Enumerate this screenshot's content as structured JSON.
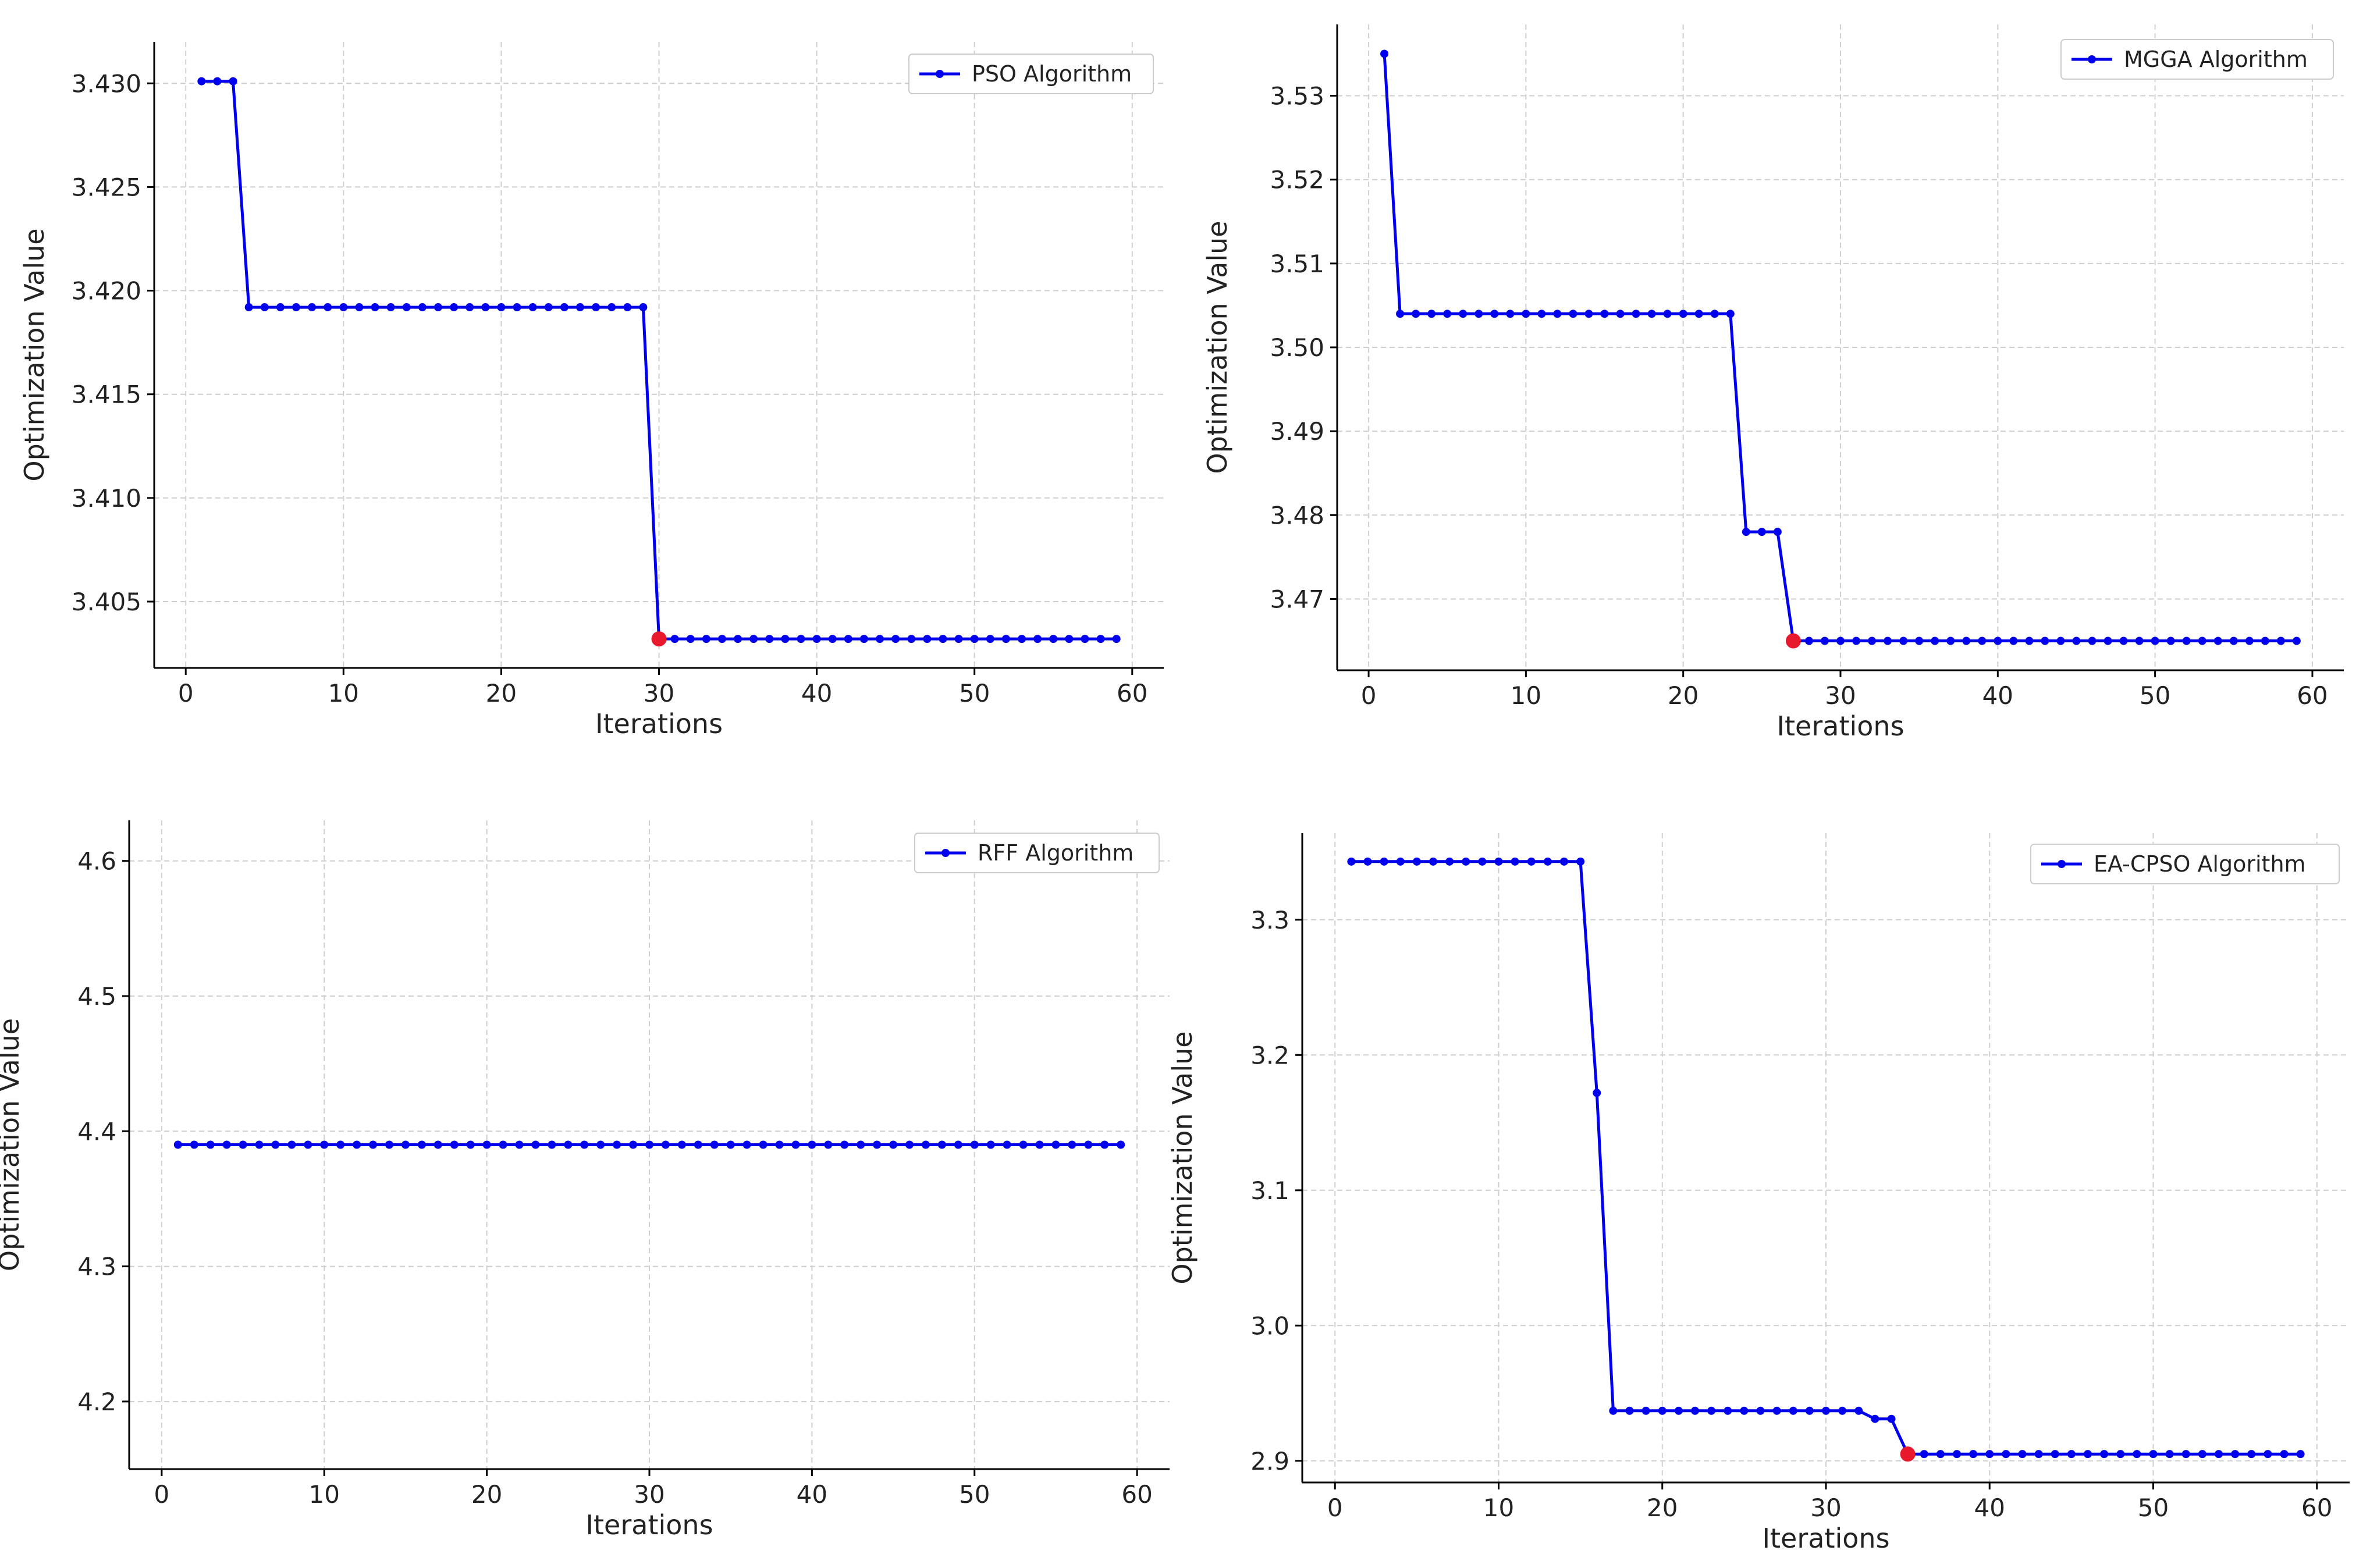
{
  "colors": {
    "line": "#0000ee",
    "highlight": "#e8192c",
    "grid": "#cfcfcf",
    "axis": "#000000"
  },
  "chart_data": [
    {
      "id": "pso",
      "type": "line",
      "title": "",
      "xlabel": "Iterations",
      "ylabel": "Optimization Value",
      "legend": "PSO Algorithm",
      "legend_position": "top-right",
      "grid": true,
      "xlim": [
        -2,
        62
      ],
      "ylim": [
        3.4018,
        3.432
      ],
      "xticks": [
        0,
        10,
        20,
        30,
        40,
        50,
        60
      ],
      "xtick_labels": [
        "0",
        "10",
        "20",
        "30",
        "40",
        "50",
        "60"
      ],
      "yticks": [
        3.405,
        3.41,
        3.415,
        3.42,
        3.425,
        3.43
      ],
      "ytick_labels": [
        "3.405",
        "3.410",
        "3.415",
        "3.420",
        "3.425",
        "3.430"
      ],
      "segments": [
        [
          1,
          3,
          3.4301
        ],
        [
          4,
          29,
          3.4192
        ],
        [
          30,
          59,
          3.4032
        ]
      ],
      "highlight": {
        "x": 30,
        "y": 3.4032
      }
    },
    {
      "id": "mgga",
      "type": "line",
      "title": "",
      "xlabel": "Iterations",
      "ylabel": "Optimization Value",
      "legend": "MGGA Algorithm",
      "legend_position": "top-right",
      "grid": true,
      "xlim": [
        -2,
        62
      ],
      "ylim": [
        3.4615,
        3.5385
      ],
      "xticks": [
        0,
        10,
        20,
        30,
        40,
        50,
        60
      ],
      "xtick_labels": [
        "0",
        "10",
        "20",
        "30",
        "40",
        "50",
        "60"
      ],
      "yticks": [
        3.47,
        3.48,
        3.49,
        3.5,
        3.51,
        3.52,
        3.53
      ],
      "ytick_labels": [
        "3.47",
        "3.48",
        "3.49",
        "3.50",
        "3.51",
        "3.52",
        "3.53"
      ],
      "segments": [
        [
          1,
          1,
          3.535
        ],
        [
          2,
          23,
          3.504
        ],
        [
          24,
          26,
          3.478
        ],
        [
          27,
          59,
          3.465
        ]
      ],
      "highlight": {
        "x": 27,
        "y": 3.465
      }
    },
    {
      "id": "rff",
      "type": "line",
      "title": "",
      "xlabel": "Iterations",
      "ylabel": "Optimization Value",
      "legend": "RFF Algorithm",
      "legend_position": "top-right",
      "grid": true,
      "xlim": [
        -2,
        62
      ],
      "ylim": [
        4.15,
        4.63
      ],
      "xticks": [
        0,
        10,
        20,
        30,
        40,
        50,
        60
      ],
      "xtick_labels": [
        "0",
        "10",
        "20",
        "30",
        "40",
        "50",
        "60"
      ],
      "yticks": [
        4.2,
        4.3,
        4.4,
        4.5,
        4.6
      ],
      "ytick_labels": [
        "4.2",
        "4.3",
        "4.4",
        "4.5",
        "4.6"
      ],
      "segments": [
        [
          1,
          59,
          4.39
        ]
      ],
      "highlight": null
    },
    {
      "id": "eacpso",
      "type": "line",
      "title": "",
      "xlabel": "Iterations",
      "ylabel": "Optimization Value",
      "legend": "EA-CPSO Algorithm",
      "legend_position": "top-right",
      "grid": true,
      "xlim": [
        -2,
        62
      ],
      "ylim": [
        2.884,
        3.364
      ],
      "xticks": [
        0,
        10,
        20,
        30,
        40,
        50,
        60
      ],
      "xtick_labels": [
        "0",
        "10",
        "20",
        "30",
        "40",
        "50",
        "60"
      ],
      "yticks": [
        2.9,
        3.0,
        3.1,
        3.2,
        3.3
      ],
      "ytick_labels": [
        "2.9",
        "3.0",
        "3.1",
        "3.2",
        "3.3"
      ],
      "segments": [
        [
          1,
          15,
          3.343
        ],
        [
          16,
          16,
          3.172
        ],
        [
          17,
          32,
          2.937
        ],
        [
          33,
          34,
          2.931
        ],
        [
          35,
          59,
          2.905
        ]
      ],
      "highlight": {
        "x": 35,
        "y": 2.905
      }
    }
  ]
}
